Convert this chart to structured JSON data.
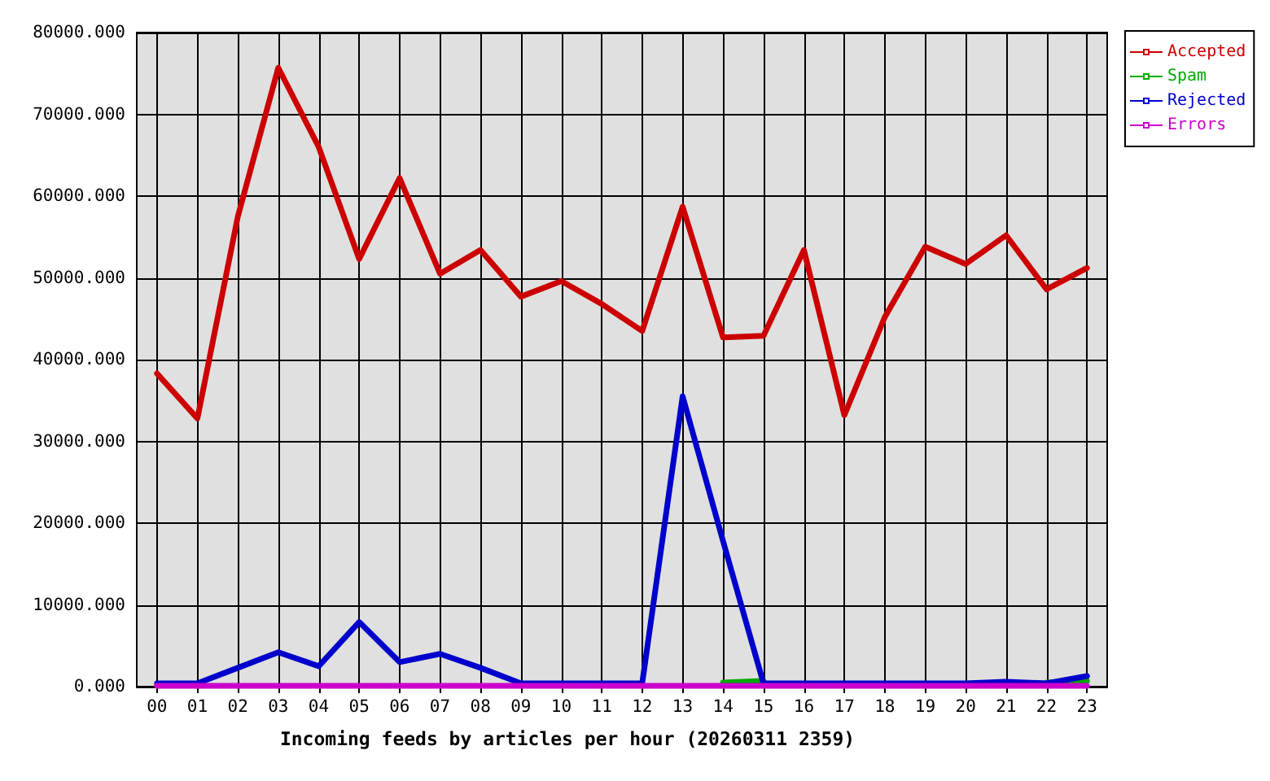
{
  "chart_data": {
    "type": "line",
    "xlabel": "Incoming feeds by articles per hour (20260311 2359)",
    "categories": [
      "00",
      "01",
      "02",
      "03",
      "04",
      "05",
      "06",
      "07",
      "08",
      "09",
      "10",
      "11",
      "12",
      "13",
      "14",
      "15",
      "16",
      "17",
      "18",
      "19",
      "20",
      "21",
      "22",
      "23"
    ],
    "series": [
      {
        "name": "Accepted",
        "color": "#cc0000",
        "values": [
          38300,
          32800,
          57500,
          75700,
          66000,
          52300,
          62200,
          50500,
          53400,
          47700,
          49600,
          46800,
          43500,
          58700,
          42700,
          42900,
          53400,
          33200,
          45200,
          53800,
          51700,
          55200,
          48600,
          51200
        ]
      },
      {
        "name": "Spam",
        "color": "#00aa00",
        "values": [
          null,
          null,
          null,
          null,
          null,
          null,
          null,
          null,
          null,
          null,
          null,
          null,
          null,
          null,
          500,
          700,
          null,
          null,
          null,
          null,
          null,
          null,
          500,
          700
        ]
      },
      {
        "name": "Rejected",
        "color": "#0000cc",
        "values": [
          400,
          400,
          2300,
          4200,
          2500,
          7900,
          3000,
          4000,
          2300,
          400,
          400,
          400,
          400,
          35500,
          17800,
          400,
          400,
          400,
          400,
          400,
          400,
          600,
          400,
          1300
        ]
      },
      {
        "name": "Errors",
        "color": "#cc00cc",
        "values": [
          100,
          100,
          100,
          100,
          100,
          100,
          100,
          100,
          100,
          100,
          100,
          100,
          100,
          100,
          100,
          100,
          100,
          100,
          100,
          100,
          100,
          100,
          100,
          100
        ]
      }
    ],
    "ylim": [
      0,
      80000
    ],
    "yticks": [
      {
        "value": 0,
        "label": "0.000"
      },
      {
        "value": 10000,
        "label": "10000.000"
      },
      {
        "value": 20000,
        "label": "20000.000"
      },
      {
        "value": 30000,
        "label": "30000.000"
      },
      {
        "value": 40000,
        "label": "40000.000"
      },
      {
        "value": 50000,
        "label": "50000.000"
      },
      {
        "value": 60000,
        "label": "60000.000"
      },
      {
        "value": 70000,
        "label": "70000.000"
      },
      {
        "value": 80000,
        "label": "80000.000"
      }
    ],
    "grid": true,
    "legend": "right",
    "marker": "none",
    "line_style": "solid"
  }
}
